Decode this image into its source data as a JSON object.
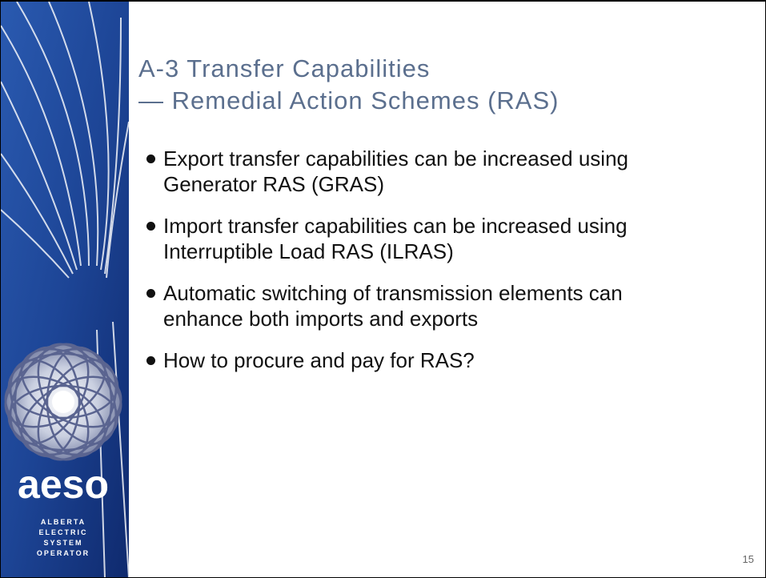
{
  "sidebar": {
    "logo": "aeso",
    "org": [
      "ALBERTA",
      "ELECTRIC",
      "SYSTEM",
      "OPERATOR"
    ]
  },
  "slide": {
    "title": [
      "A-3 Transfer Capabilities",
      "— Remedial Action Schemes (RAS)"
    ],
    "bullets": [
      [
        "Export transfer capabilities can be increased using",
        "Generator RAS (GRAS)"
      ],
      [
        "Import transfer capabilities can be increased using",
        "Interruptible Load RAS (ILRAS)"
      ],
      [
        "Automatic switching of transmission elements can",
        "enhance both imports and exports"
      ],
      [
        "How to procure and pay for RAS?"
      ]
    ],
    "page_number": "15"
  }
}
